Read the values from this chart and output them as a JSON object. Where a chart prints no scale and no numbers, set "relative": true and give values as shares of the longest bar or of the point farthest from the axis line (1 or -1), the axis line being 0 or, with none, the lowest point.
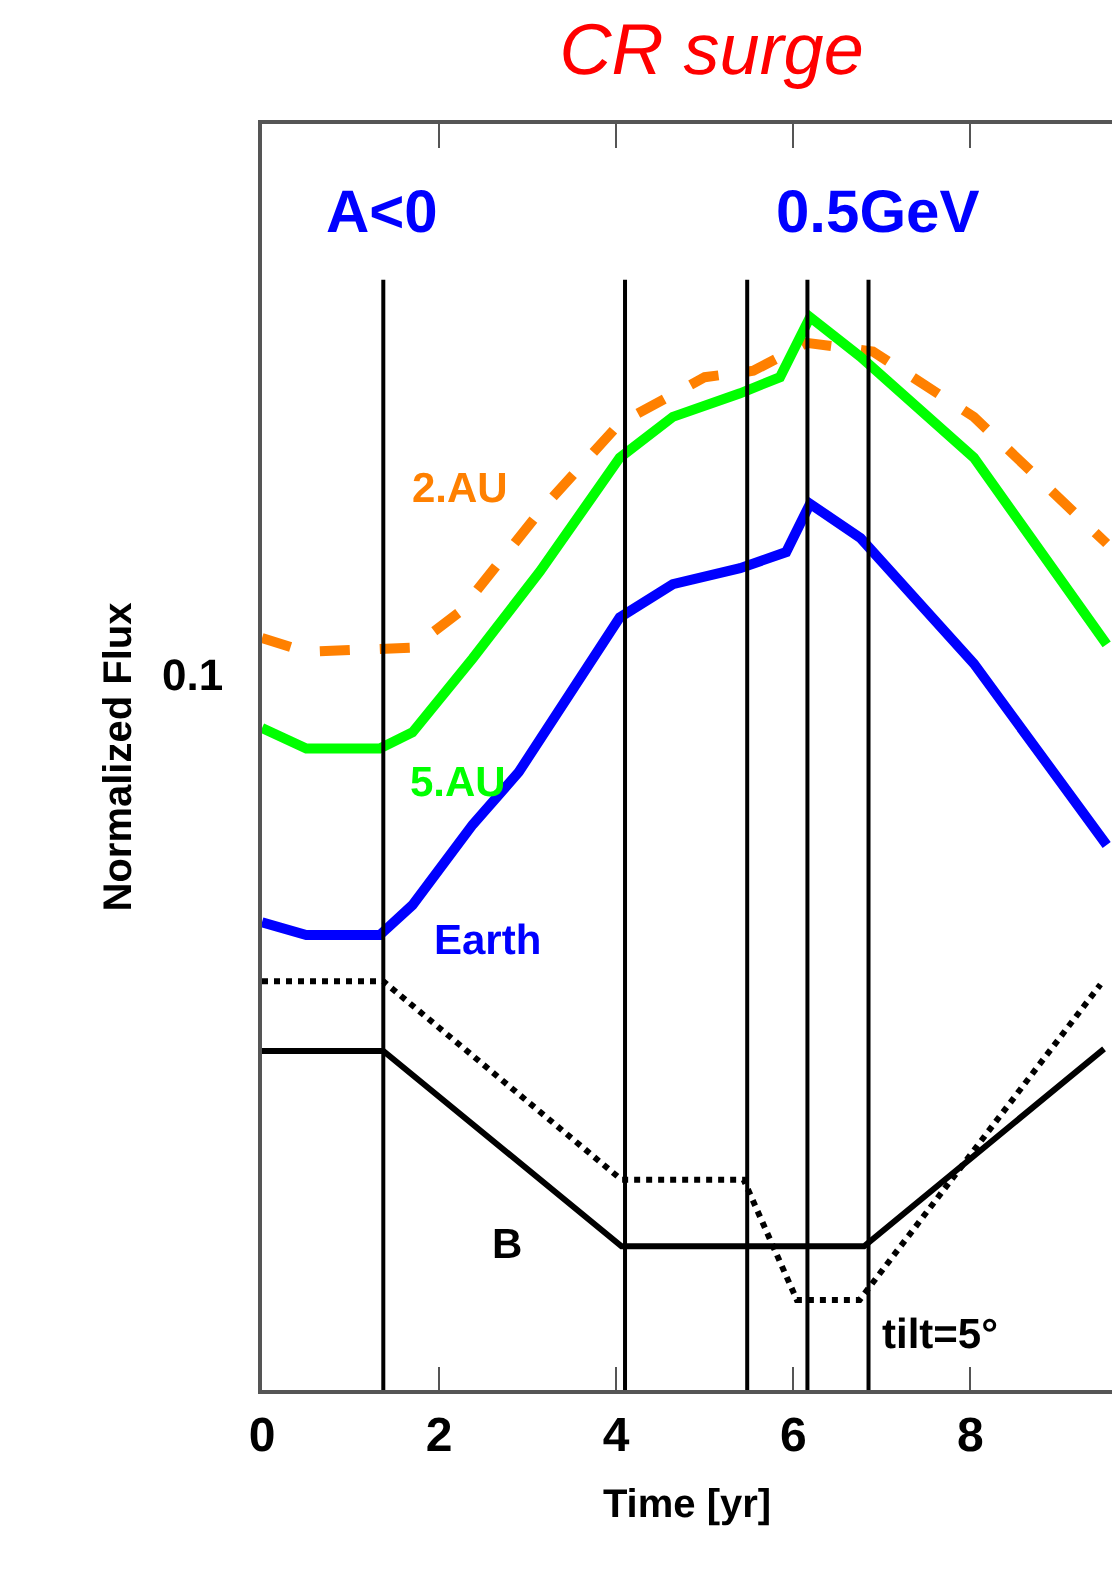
{
  "chart_data": {
    "type": "line",
    "title": "CR surge",
    "xlabel": "Time [yr]",
    "ylabel": "Normalized Flux",
    "relative": true,
    "xlim": [
      0,
      9.6
    ],
    "xticks": [
      0,
      2,
      4,
      6,
      8
    ],
    "annotations": [
      "A<0",
      "0.5GeV",
      "0.1"
    ],
    "ref_lines": [
      {
        "axis": "x",
        "value": 1.37,
        "color": "#000000"
      },
      {
        "axis": "x",
        "value": 4.1,
        "color": "#000000"
      },
      {
        "axis": "x",
        "value": 5.48,
        "color": "#000000"
      },
      {
        "axis": "x",
        "value": 6.16,
        "color": "#000000"
      },
      {
        "axis": "x",
        "value": 6.85,
        "color": "#000000"
      }
    ],
    "series": [
      {
        "name": "2.AU",
        "color": "#ff8000",
        "line_style": "dashed",
        "x": [
          0,
          0.5,
          1.7,
          2.23,
          3.14,
          4.04,
          5.0,
          5.55,
          6.15,
          6.9,
          8.04,
          9.54
        ],
        "values": [
          0.701,
          0.688,
          0.692,
          0.725,
          0.819,
          0.901,
          0.944,
          0.95,
          0.976,
          0.968,
          0.907,
          0.789
        ]
      },
      {
        "name": "5.AU",
        "color": "#00ff00",
        "line_style": "solid",
        "x": [
          0,
          0.5,
          1.33,
          1.7,
          2.38,
          3.14,
          4.04,
          4.64,
          5.4,
          5.85,
          6.19,
          6.76,
          8.04,
          9.54
        ],
        "values": [
          0.617,
          0.598,
          0.598,
          0.613,
          0.682,
          0.763,
          0.869,
          0.907,
          0.929,
          0.944,
          1,
          0.963,
          0.869,
          0.695
        ]
      },
      {
        "name": "Earth",
        "color": "#0000ff",
        "line_style": "solid",
        "x": [
          0,
          0.5,
          1.33,
          1.7,
          2.38,
          2.9,
          4.04,
          4.64,
          5.4,
          5.92,
          6.19,
          6.76,
          8.04,
          9.54
        ],
        "values": [
          0.436,
          0.424,
          0.424,
          0.452,
          0.527,
          0.576,
          0.72,
          0.751,
          0.766,
          0.781,
          0.826,
          0.794,
          0.677,
          0.508
        ]
      },
      {
        "name": "B",
        "color": "#000000",
        "line_style": "solid",
        "x": [
          0,
          1.37,
          4.06,
          6.8,
          9.51
        ],
        "values": [
          0.316,
          0.316,
          0.134,
          0.134,
          0.318
        ]
      },
      {
        "name": "tilt=5°",
        "color": "#000000",
        "line_style": "dotted",
        "x": [
          0,
          1.37,
          4.06,
          5.44,
          6.04,
          6.75,
          9.47
        ],
        "values": [
          0.381,
          0.381,
          0.196,
          0.196,
          0.084,
          0.084,
          0.378
        ]
      }
    ]
  }
}
